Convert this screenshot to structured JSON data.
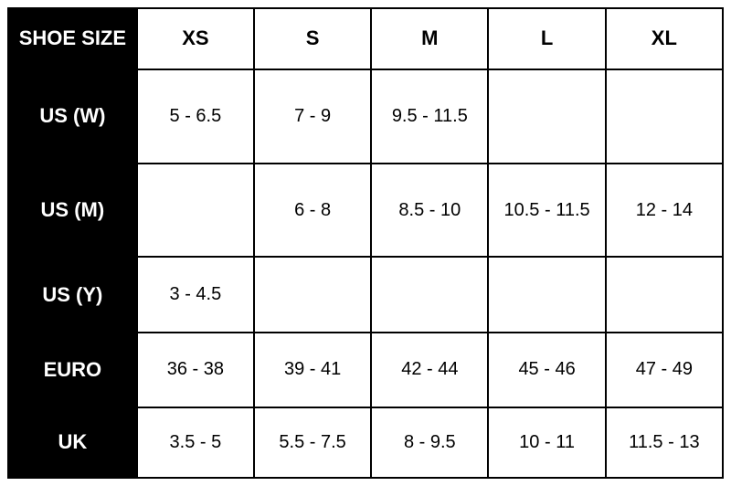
{
  "table": {
    "corner_label": "SHOE SIZE",
    "columns": [
      "XS",
      "S",
      "M",
      "L",
      "XL"
    ],
    "rows": [
      {
        "label": "US (W)",
        "cells": [
          "5 - 6.5",
          "7 - 9",
          "9.5 - 11.5",
          "",
          ""
        ]
      },
      {
        "label": "US (M)",
        "cells": [
          "",
          "6 - 8",
          "8.5 - 10",
          "10.5 - 11.5",
          "12 - 14"
        ]
      },
      {
        "label": "US (Y)",
        "cells": [
          "3 - 4.5",
          "",
          "",
          "",
          ""
        ]
      },
      {
        "label": "EURO",
        "cells": [
          "36 - 38",
          "39 - 41",
          "42 - 44",
          "45 - 46",
          "47 - 49"
        ]
      },
      {
        "label": "UK",
        "cells": [
          "3.5 - 5",
          "5.5 - 7.5",
          "8 - 9.5",
          "10 - 11",
          "11.5 - 13"
        ]
      }
    ],
    "styling": {
      "header_bg": "#000000",
      "header_fg": "#ffffff",
      "cell_bg": "#ffffff",
      "cell_fg": "#000000",
      "border_color": "#000000",
      "border_width": 2,
      "font_family": "Arial",
      "header_fontsize": 22,
      "cell_fontsize": 20
    }
  }
}
